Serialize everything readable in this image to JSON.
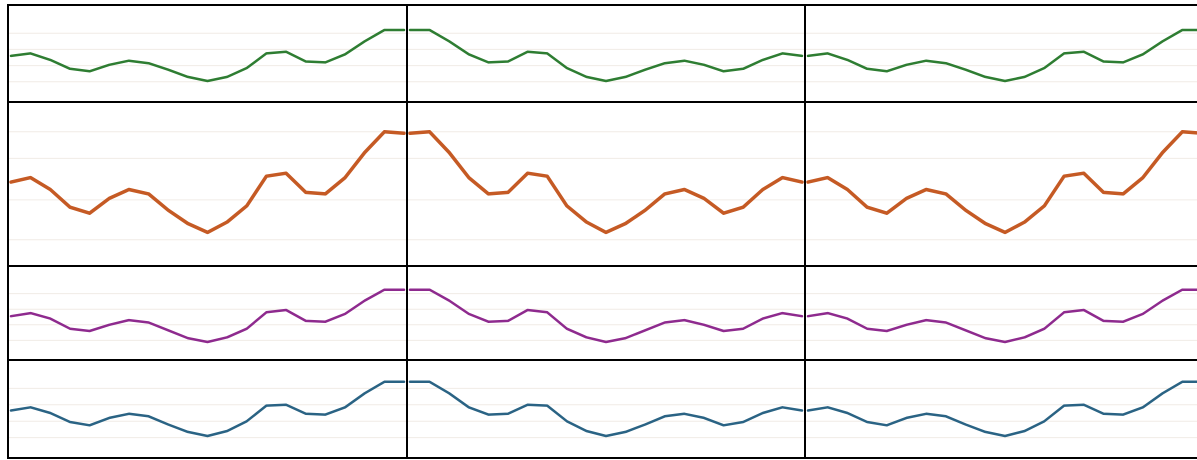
{
  "chart_data": [
    {
      "type": "line",
      "color": "#2e7d32",
      "ylim": [
        0,
        100
      ],
      "yticks": [
        20,
        40,
        60,
        80
      ],
      "grid": true,
      "values": [
        52,
        55,
        47,
        36,
        33,
        41,
        46,
        43,
        35,
        26,
        21,
        26,
        37,
        55,
        57,
        45,
        44,
        54,
        70,
        84,
        84
      ]
    },
    {
      "type": "line",
      "color": "#2e7d32",
      "ylim": [
        0,
        100
      ],
      "yticks": [
        20,
        40,
        60,
        80
      ],
      "grid": true,
      "values": [
        84,
        84,
        70,
        54,
        44,
        45,
        57,
        55,
        37,
        26,
        21,
        26,
        35,
        43,
        46,
        41,
        33,
        36,
        47,
        55,
        52
      ]
    },
    {
      "type": "line",
      "color": "#2e7d32",
      "ylim": [
        0,
        100
      ],
      "yticks": [
        20,
        40,
        60,
        80
      ],
      "grid": true,
      "values": [
        52,
        55,
        47,
        36,
        33,
        41,
        46,
        43,
        35,
        26,
        21,
        26,
        37,
        55,
        57,
        45,
        44,
        54,
        70,
        84,
        84
      ]
    },
    {
      "type": "line",
      "color": "#c55a24",
      "ylim": [
        0,
        100
      ],
      "yticks": [
        15,
        42,
        70,
        88
      ],
      "grid": true,
      "values": [
        54,
        57,
        49,
        37,
        33,
        43,
        49,
        46,
        35,
        26,
        20,
        27,
        38,
        58,
        60,
        47,
        46,
        57,
        74,
        88,
        87
      ]
    },
    {
      "type": "line",
      "color": "#c55a24",
      "ylim": [
        0,
        100
      ],
      "yticks": [
        15,
        42,
        70,
        88
      ],
      "grid": true,
      "values": [
        87,
        88,
        74,
        57,
        46,
        47,
        60,
        58,
        38,
        27,
        20,
        26,
        35,
        46,
        49,
        43,
        33,
        37,
        49,
        57,
        54
      ]
    },
    {
      "type": "line",
      "color": "#c55a24",
      "ylim": [
        0,
        100
      ],
      "yticks": [
        15,
        42,
        70,
        88
      ],
      "grid": true,
      "values": [
        54,
        57,
        49,
        37,
        33,
        43,
        49,
        46,
        35,
        26,
        20,
        27,
        38,
        58,
        60,
        47,
        46,
        57,
        74,
        88,
        87
      ]
    },
    {
      "type": "line",
      "color": "#8e2a8e",
      "ylim": [
        0,
        100
      ],
      "yticks": [
        20,
        40,
        60,
        80
      ],
      "grid": true,
      "values": [
        51,
        55,
        48,
        35,
        32,
        40,
        46,
        43,
        33,
        23,
        18,
        24,
        35,
        56,
        59,
        45,
        44,
        54,
        71,
        85,
        85
      ]
    },
    {
      "type": "line",
      "color": "#8e2a8e",
      "ylim": [
        0,
        100
      ],
      "yticks": [
        20,
        40,
        60,
        80
      ],
      "grid": true,
      "values": [
        85,
        85,
        71,
        54,
        44,
        45,
        59,
        56,
        35,
        24,
        18,
        23,
        33,
        43,
        46,
        40,
        32,
        35,
        48,
        55,
        51
      ]
    },
    {
      "type": "line",
      "color": "#8e2a8e",
      "ylim": [
        0,
        100
      ],
      "yticks": [
        20,
        40,
        60,
        80
      ],
      "grid": true,
      "values": [
        51,
        55,
        48,
        35,
        32,
        40,
        46,
        43,
        33,
        23,
        18,
        24,
        35,
        56,
        59,
        45,
        44,
        54,
        71,
        85,
        85
      ]
    },
    {
      "type": "line",
      "color": "#2a6384",
      "ylim": [
        0,
        100
      ],
      "yticks": [
        20,
        40,
        60,
        80
      ],
      "grid": true,
      "values": [
        53,
        57,
        50,
        39,
        35,
        44,
        49,
        46,
        36,
        27,
        22,
        28,
        40,
        59,
        60,
        49,
        48,
        57,
        74,
        88,
        88
      ]
    },
    {
      "type": "line",
      "color": "#2a6384",
      "ylim": [
        0,
        100
      ],
      "yticks": [
        20,
        40,
        60,
        80
      ],
      "grid": true,
      "values": [
        88,
        88,
        74,
        57,
        48,
        49,
        60,
        59,
        40,
        28,
        22,
        27,
        36,
        46,
        49,
        44,
        35,
        39,
        50,
        57,
        53
      ]
    },
    {
      "type": "line",
      "color": "#2a6384",
      "ylim": [
        0,
        100
      ],
      "yticks": [
        20,
        40,
        60,
        80
      ],
      "grid": true,
      "values": [
        53,
        57,
        50,
        39,
        35,
        44,
        49,
        46,
        36,
        27,
        22,
        28,
        40,
        59,
        60,
        49,
        48,
        57,
        74,
        88,
        88
      ]
    }
  ]
}
